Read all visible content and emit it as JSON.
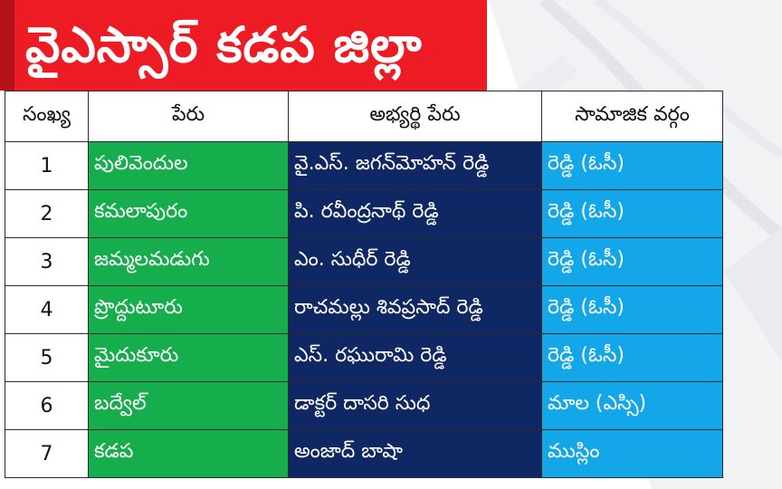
{
  "title": "వైఎస్సార్ కడప జిల్లా",
  "colors": {
    "title_bg": "#ed1c24",
    "constituency_bg": "#16ad4c",
    "candidate_bg": "#0f2863",
    "caste_bg": "#13a6e9"
  },
  "table": {
    "headers": {
      "number": "సంఖ్య",
      "constituency": "పేరు",
      "candidate": "అభ్యర్థి పేరు",
      "caste": "సామాజిక వర్గం"
    },
    "rows": [
      {
        "number": "1",
        "constituency": "పులివెందుల",
        "candidate": "వై.ఎస్. జగన్‌మోహన్ రెడ్డి",
        "caste": "రెడ్డి (ఓసీ)"
      },
      {
        "number": "2",
        "constituency": "కమలాపురం",
        "candidate": "పి. రవీంద్రనాథ్ రెడ్డి",
        "caste": "రెడ్డి (ఓసీ)"
      },
      {
        "number": "3",
        "constituency": "జమ్మలమడుగు",
        "candidate": "ఎం. సుధీర్ రెడ్డి",
        "caste": "రెడ్డి (ఓసీ)"
      },
      {
        "number": "4",
        "constituency": "ప్రొద్దుటూరు",
        "candidate": "రాచమల్లు శివప్రసాద్ రెడ్డి",
        "caste": "రెడ్డి (ఓసీ)"
      },
      {
        "number": "5",
        "constituency": "మైదుకూరు",
        "candidate": "ఎస్. రఘురామి రెడ్డి",
        "caste": "రెడ్డి (ఓసీ)"
      },
      {
        "number": "6",
        "constituency": "బద్వేల్",
        "candidate": "డాక్టర్ దాసరి సుధ",
        "caste": "మాల (ఎస్సి)"
      },
      {
        "number": "7",
        "constituency": "కడప",
        "candidate": "అంజాద్ బాషా",
        "caste": "ముస్లిం"
      }
    ]
  }
}
